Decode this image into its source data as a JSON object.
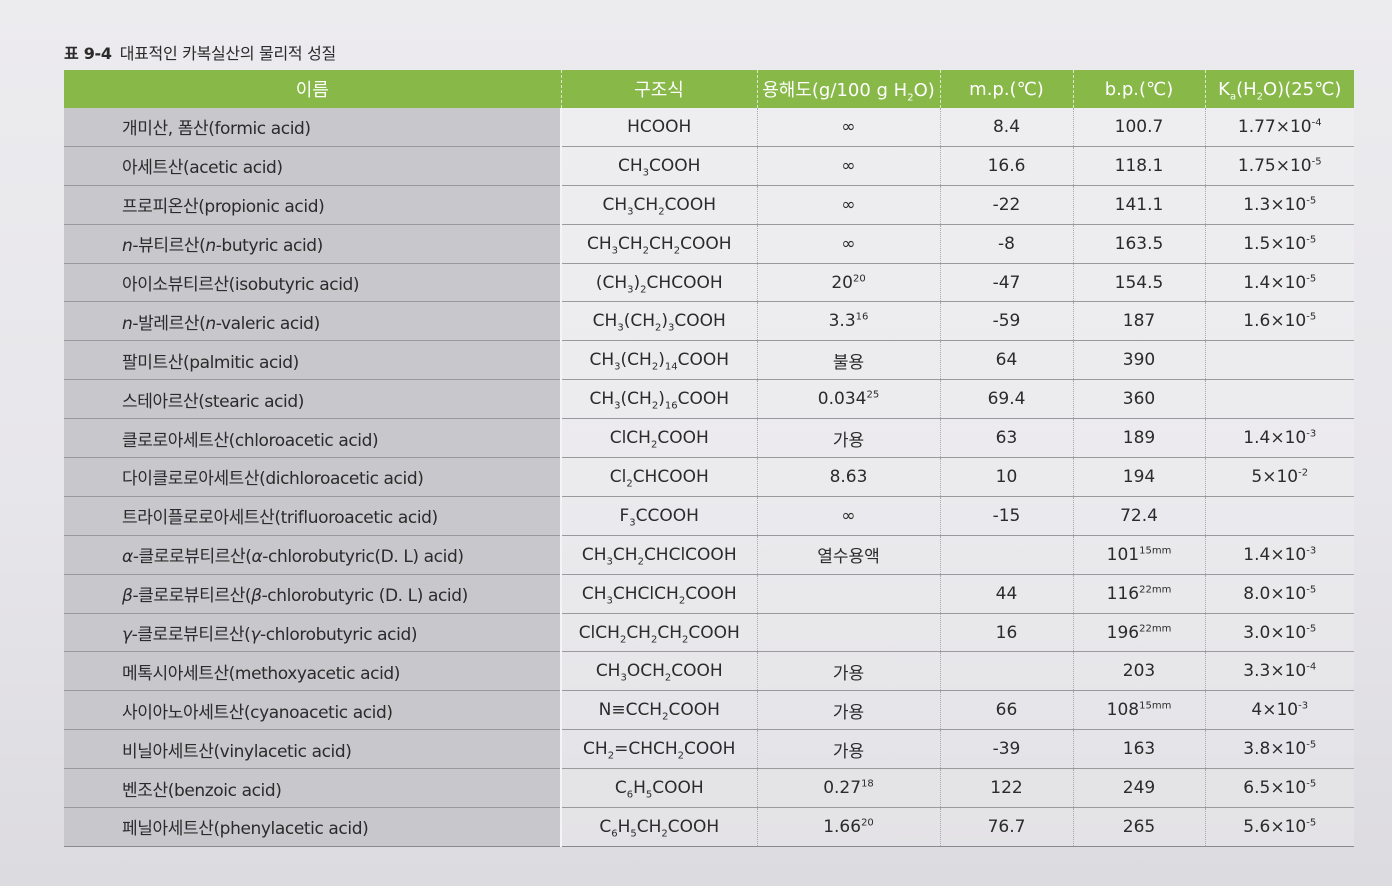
{
  "caption": {
    "number": "표 9-4",
    "title": "대표적인 카복실산의 물리적 성질"
  },
  "headers": {
    "name": "이름",
    "formula": "구조식",
    "solubility": "용해도(g/100 g H<sub>2</sub>O)",
    "mp": "m.p.(℃)",
    "bp": "b.p.(℃)",
    "ka": "K<sub>a</sub>(H<sub>2</sub>O)(25℃)"
  },
  "rows": [
    {
      "name": "개미산, 폼산(formic acid)",
      "formula": "HCOOH",
      "solubility": "∞",
      "mp": "8.4",
      "bp": "100.7",
      "ka": "1.77×10<sup>-4</sup>"
    },
    {
      "name": "아세트산(acetic acid)",
      "formula": "CH<sub>3</sub>COOH",
      "solubility": "∞",
      "mp": "16.6",
      "bp": "118.1",
      "ka": "1.75×10<sup>-5</sup>"
    },
    {
      "name": "프로피온산(propionic acid)",
      "formula": "CH<sub>3</sub>CH<sub>2</sub>COOH",
      "solubility": "∞",
      "mp": "-22",
      "bp": "141.1",
      "ka": "1.3×10<sup>-5</sup>"
    },
    {
      "name": "<i>n</i>-뷰티르산(<i>n</i>-butyric acid)",
      "formula": "CH<sub>3</sub>CH<sub>2</sub>CH<sub>2</sub>COOH",
      "solubility": "∞",
      "mp": "-8",
      "bp": "163.5",
      "ka": "1.5×10<sup>-5</sup>"
    },
    {
      "name": "아이소뷰티르산(isobutyric acid)",
      "formula": "(CH<sub>3</sub>)<sub>2</sub>CHCOOH",
      "solubility": "20<sup>20</sup>",
      "mp": "-47",
      "bp": "154.5",
      "ka": "1.4×10<sup>-5</sup>"
    },
    {
      "name": "<i>n</i>-발레르산(<i>n</i>-valeric acid)",
      "formula": "CH<sub>3</sub>(CH<sub>2</sub>)<sub>3</sub>COOH",
      "solubility": "3.3<sup>16</sup>",
      "mp": "-59",
      "bp": "187",
      "ka": "1.6×10<sup>-5</sup>"
    },
    {
      "name": "팔미트산(palmitic acid)",
      "formula": "CH<sub>3</sub>(CH<sub>2</sub>)<sub>14</sub>COOH",
      "solubility": "불용",
      "mp": "64",
      "bp": "390",
      "ka": ""
    },
    {
      "name": "스테아르산(stearic acid)",
      "formula": "CH<sub>3</sub>(CH<sub>2</sub>)<sub>16</sub>COOH",
      "solubility": "0.034<sup>25</sup>",
      "mp": "69.4",
      "bp": "360",
      "ka": ""
    },
    {
      "name": "클로로아세트산(chloroacetic acid)",
      "formula": "ClCH<sub>2</sub>COOH",
      "solubility": "가용",
      "mp": "63",
      "bp": "189",
      "ka": "1.4×10<sup>-3</sup>"
    },
    {
      "name": "다이클로로아세트산(dichloroacetic acid)",
      "formula": "Cl<sub>2</sub>CHCOOH",
      "solubility": "8.63",
      "mp": "10",
      "bp": "194",
      "ka": "5×10<sup>-2</sup>"
    },
    {
      "name": "트라이플로로아세트산(trifluoroacetic acid)",
      "formula": "F<sub>3</sub>CCOOH",
      "solubility": "∞",
      "mp": "-15",
      "bp": "72.4",
      "ka": ""
    },
    {
      "name": "<i>α</i>-클로로뷰티르산(<i>α</i>-chlorobutyric(D. L) acid)",
      "formula": "CH<sub>3</sub>CH<sub>2</sub>CHClCOOH",
      "solubility": "열수용액",
      "mp": "",
      "bp": "101<sup>15mm</sup>",
      "ka": "1.4×10<sup>-3</sup>"
    },
    {
      "name": "<i>β</i>-클로로뷰티르산(<i>β</i>-chlorobutyric (D. L) acid)",
      "formula": "CH<sub>3</sub>CHClCH<sub>2</sub>COOH",
      "solubility": "",
      "mp": "44",
      "bp": "116<sup>22mm</sup>",
      "ka": "8.0×10<sup>-5</sup>"
    },
    {
      "name": "<i>γ</i>-클로로뷰티르산(<i>γ</i>-chlorobutyric acid)",
      "formula": "ClCH<sub>2</sub>CH<sub>2</sub>CH<sub>2</sub>COOH",
      "solubility": "",
      "mp": "16",
      "bp": "196<sup>22mm</sup>",
      "ka": "3.0×10<sup>-5</sup>"
    },
    {
      "name": "메톡시아세트산(methoxyacetic acid)",
      "formula": "CH<sub>3</sub>OCH<sub>2</sub>COOH",
      "solubility": "가용",
      "mp": "",
      "bp": "203",
      "ka": "3.3×10<sup>-4</sup>"
    },
    {
      "name": "사이아노아세트산(cyanoacetic acid)",
      "formula": "N≡CCH<sub>2</sub>COOH",
      "solubility": "가용",
      "mp": "66",
      "bp": "108<sup>15mm</sup>",
      "ka": "4×10<sup>-3</sup>"
    },
    {
      "name": "비닐아세트산(vinylacetic acid)",
      "formula": "CH<sub>2</sub>=CHCH<sub>2</sub>COOH",
      "solubility": "가용",
      "mp": "-39",
      "bp": "163",
      "ka": "3.8×10<sup>-5</sup>"
    },
    {
      "name": "벤조산(benzoic acid)",
      "formula": "C<sub>6</sub>H<sub>5</sub>COOH",
      "solubility": "0.27<sup>18</sup>",
      "mp": "122",
      "bp": "249",
      "ka": "6.5×10<sup>-5</sup>"
    },
    {
      "name": "페닐아세트산(phenylacetic acid)",
      "formula": "C<sub>6</sub>H<sub>5</sub>CH<sub>2</sub>COOH",
      "solubility": "1.66<sup>20</sup>",
      "mp": "76.7",
      "bp": "265",
      "ka": "5.6×10<sup>-5</sup>"
    }
  ]
}
